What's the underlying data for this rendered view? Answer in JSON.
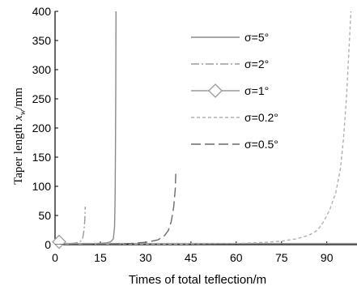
{
  "chart_data": {
    "type": "line",
    "xlabel": "Times of total teflection/m",
    "ylabel_main": "Taper length ",
    "ylabel_var": "x",
    "ylabel_sub": "w",
    "ylabel_unit": "/mm",
    "xlim": [
      0,
      100
    ],
    "ylim": [
      0,
      400
    ],
    "xticks": [
      0,
      15,
      30,
      45,
      60,
      75,
      90
    ],
    "yticks": [
      0,
      50,
      100,
      150,
      200,
      250,
      300,
      350,
      400
    ],
    "grid": false,
    "legend_position": "top-right",
    "series": [
      {
        "name": "σ=5°",
        "style": "solid",
        "color": "#8a8a8a",
        "points": [
          [
            0,
            0
          ],
          [
            5,
            0.5
          ],
          [
            10,
            1
          ],
          [
            14,
            2
          ],
          [
            17,
            3
          ],
          [
            18.5,
            5
          ],
          [
            19.3,
            10
          ],
          [
            19.7,
            30
          ],
          [
            19.9,
            80
          ],
          [
            20,
            160
          ],
          [
            20.1,
            260
          ],
          [
            20.2,
            400
          ]
        ]
      },
      {
        "name": "σ=2°",
        "style": "dashdot",
        "color": "#9a9a9a",
        "points": [
          [
            0,
            0
          ],
          [
            4,
            1
          ],
          [
            7,
            3
          ],
          [
            8.5,
            6
          ],
          [
            9.2,
            12
          ],
          [
            9.6,
            25
          ],
          [
            9.9,
            45
          ],
          [
            10,
            65
          ]
        ]
      },
      {
        "name": "σ=1°",
        "style": "solid-diamond",
        "color": "#9a9a9a",
        "points": [
          [
            0,
            2
          ],
          [
            10,
            2
          ],
          [
            20,
            2
          ],
          [
            30,
            2
          ],
          [
            40,
            2
          ],
          [
            50,
            2
          ],
          [
            60,
            2
          ],
          [
            70,
            2
          ],
          [
            80,
            2
          ],
          [
            90,
            2
          ],
          [
            100,
            2
          ]
        ]
      },
      {
        "name": "σ=0.2°",
        "style": "dashed",
        "color": "#b0b0b0",
        "points": [
          [
            0,
            0
          ],
          [
            20,
            0.3
          ],
          [
            40,
            0.8
          ],
          [
            60,
            2
          ],
          [
            70,
            4
          ],
          [
            75,
            6
          ],
          [
            80,
            10
          ],
          [
            84,
            16
          ],
          [
            87,
            25
          ],
          [
            89,
            40
          ],
          [
            91,
            60
          ],
          [
            93,
            90
          ],
          [
            94.5,
            130
          ],
          [
            95.5,
            180
          ],
          [
            96.5,
            250
          ],
          [
            97.3,
            330
          ],
          [
            98,
            400
          ]
        ]
      },
      {
        "name": "σ=0.5°",
        "style": "longdash",
        "color": "#6a6a6a",
        "points": [
          [
            0,
            0
          ],
          [
            10,
            0.5
          ],
          [
            20,
            1
          ],
          [
            25,
            2
          ],
          [
            30,
            4
          ],
          [
            34,
            8
          ],
          [
            36,
            14
          ],
          [
            37.5,
            24
          ],
          [
            38.5,
            40
          ],
          [
            39.3,
            65
          ],
          [
            39.8,
            95
          ],
          [
            40,
            125
          ]
        ]
      }
    ]
  }
}
